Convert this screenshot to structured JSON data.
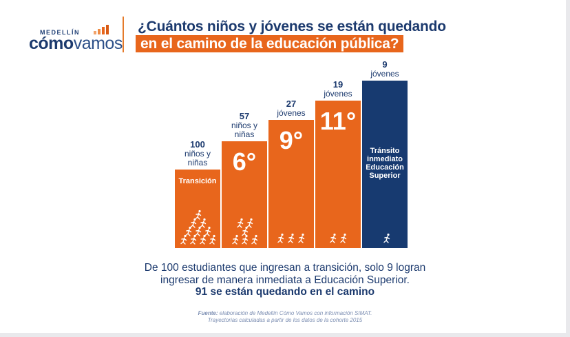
{
  "logo": {
    "city": "MEDELLÍN",
    "name_bold": "cómo",
    "name_regular": "vamos"
  },
  "title": {
    "line1": "¿Cuántos niños y jóvenes se están quedando",
    "line2": "en el camino de la educación pública?"
  },
  "colors": {
    "orange": "#e8661c",
    "navy": "#1c3a6e",
    "bar_navy": "#173a70"
  },
  "chart_data": {
    "type": "bar",
    "categories": [
      "Transición",
      "6°",
      "9°",
      "11°",
      "Tránsito inmediato Educación Superior"
    ],
    "values": [
      100,
      57,
      27,
      19,
      9
    ],
    "value_labels": [
      {
        "number": "100",
        "lines": [
          "niños y",
          "niñas"
        ]
      },
      {
        "number": "57",
        "lines": [
          "niños y",
          "niñas"
        ]
      },
      {
        "number": "27",
        "lines": [
          "jóvenes"
        ]
      },
      {
        "number": "19",
        "lines": [
          "jóvenes"
        ]
      },
      {
        "number": "9",
        "lines": [
          "jóvenes"
        ]
      }
    ],
    "bar_inner_labels": [
      {
        "lines": [
          "Transición"
        ],
        "style": "small"
      },
      {
        "lines": [
          "6°"
        ],
        "style": "large"
      },
      {
        "lines": [
          "9°"
        ],
        "style": "large"
      },
      {
        "lines": [
          "11°"
        ],
        "style": "large"
      },
      {
        "lines": [
          "Tránsito",
          "inmediato",
          "Educación",
          "Superior"
        ],
        "style": "small"
      }
    ],
    "bar_colors": [
      "#e8661c",
      "#e8661c",
      "#e8661c",
      "#e8661c",
      "#173a70"
    ],
    "runner_icon_counts": [
      10,
      6,
      3,
      2,
      1
    ]
  },
  "summary": {
    "line1": "De 100 estudiantes que ingresan a transición, solo 9 logran",
    "line2": "ingresar de manera inmediata a Educación Superior.",
    "line3": "91 se están quedando en el camino"
  },
  "source": {
    "label": "Fuente:",
    "line1": "elaboración de Medellín Cómo Vamos con información SIMAT.",
    "line2": "Trayectorias calculadas a partir de los datos de la cohorte 2015"
  }
}
